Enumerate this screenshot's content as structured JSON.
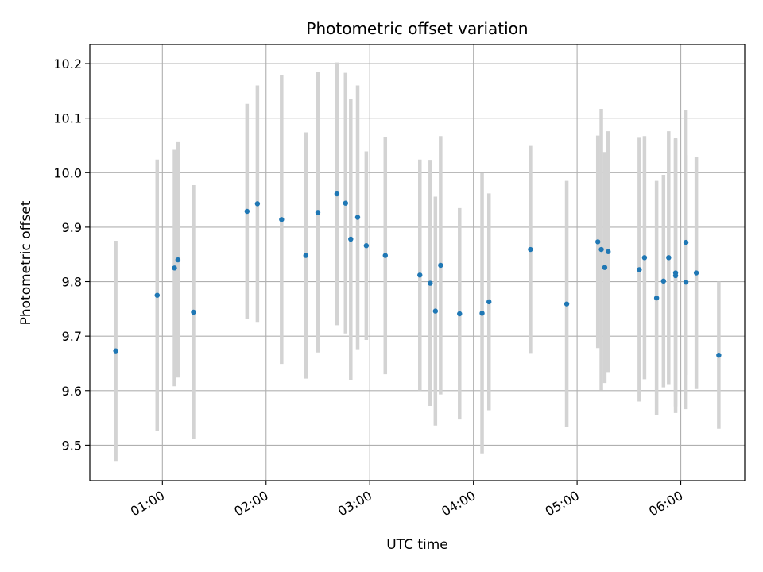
{
  "chart_data": {
    "type": "scatter",
    "title": "Photometric offset variation",
    "xlabel": "UTC time",
    "ylabel": "Photometric offset",
    "x_tick_labels": [
      "01:00",
      "02:00",
      "03:00",
      "04:00",
      "05:00",
      "06:00"
    ],
    "y_ticks": [
      9.5,
      9.6,
      9.7,
      9.8,
      9.9,
      10.0,
      10.1,
      10.2
    ],
    "y_tick_labels": [
      "9.5",
      "9.6",
      "9.7",
      "9.8",
      "9.9",
      "10.0",
      "10.1",
      "10.2"
    ],
    "xlim": [
      "00:18",
      "06:37"
    ],
    "ylim": [
      9.435,
      10.235
    ],
    "grid": true,
    "colors": {
      "points": "#1f77b4",
      "errorbars": "#d3d3d3",
      "grid": "#b0b0b0"
    },
    "points": [
      {
        "x": "00:33",
        "y": 9.673,
        "err": 0.202
      },
      {
        "x": "00:57",
        "y": 9.775,
        "err": 0.249
      },
      {
        "x": "01:07",
        "y": 9.825,
        "err": 0.217
      },
      {
        "x": "01:09",
        "y": 9.84,
        "err": 0.216
      },
      {
        "x": "01:18",
        "y": 9.744,
        "err": 0.233
      },
      {
        "x": "01:49",
        "y": 9.929,
        "err": 0.197
      },
      {
        "x": "01:55",
        "y": 9.943,
        "err": 0.217
      },
      {
        "x": "02:09",
        "y": 9.914,
        "err": 0.265
      },
      {
        "x": "02:23",
        "y": 9.848,
        "err": 0.226
      },
      {
        "x": "02:30",
        "y": 9.927,
        "err": 0.257
      },
      {
        "x": "02:41",
        "y": 9.961,
        "err": 0.241
      },
      {
        "x": "02:46",
        "y": 9.944,
        "err": 0.239
      },
      {
        "x": "02:49",
        "y": 9.878,
        "err": 0.258
      },
      {
        "x": "02:53",
        "y": 9.918,
        "err": 0.242
      },
      {
        "x": "02:58",
        "y": 9.866,
        "err": 0.173
      },
      {
        "x": "03:09",
        "y": 9.848,
        "err": 0.218
      },
      {
        "x": "03:29",
        "y": 9.812,
        "err": 0.212
      },
      {
        "x": "03:35",
        "y": 9.797,
        "err": 0.225
      },
      {
        "x": "03:38",
        "y": 9.746,
        "err": 0.21
      },
      {
        "x": "03:41",
        "y": 9.83,
        "err": 0.237
      },
      {
        "x": "03:52",
        "y": 9.741,
        "err": 0.194
      },
      {
        "x": "04:05",
        "y": 9.742,
        "err": 0.257
      },
      {
        "x": "04:09",
        "y": 9.763,
        "err": 0.199
      },
      {
        "x": "04:33",
        "y": 9.859,
        "err": 0.19
      },
      {
        "x": "04:54",
        "y": 9.759,
        "err": 0.226
      },
      {
        "x": "05:12",
        "y": 9.873,
        "err": 0.195
      },
      {
        "x": "05:14",
        "y": 9.859,
        "err": 0.258
      },
      {
        "x": "05:16",
        "y": 9.826,
        "err": 0.212
      },
      {
        "x": "05:18",
        "y": 9.855,
        "err": 0.221
      },
      {
        "x": "05:36",
        "y": 9.822,
        "err": 0.242
      },
      {
        "x": "05:39",
        "y": 9.844,
        "err": 0.223
      },
      {
        "x": "05:46",
        "y": 9.77,
        "err": 0.215
      },
      {
        "x": "05:50",
        "y": 9.801,
        "err": 0.195
      },
      {
        "x": "05:53",
        "y": 9.844,
        "err": 0.232
      },
      {
        "x": "05:57",
        "y": 9.816,
        "err": 0.245
      },
      {
        "x": "05:57",
        "y": 9.811,
        "err": 0.252
      },
      {
        "x": "06:03",
        "y": 9.872,
        "err": 0.243
      },
      {
        "x": "06:03",
        "y": 9.799,
        "err": 0.233
      },
      {
        "x": "06:09",
        "y": 9.816,
        "err": 0.213
      },
      {
        "x": "06:22",
        "y": 9.665,
        "err": 0.135
      }
    ]
  }
}
